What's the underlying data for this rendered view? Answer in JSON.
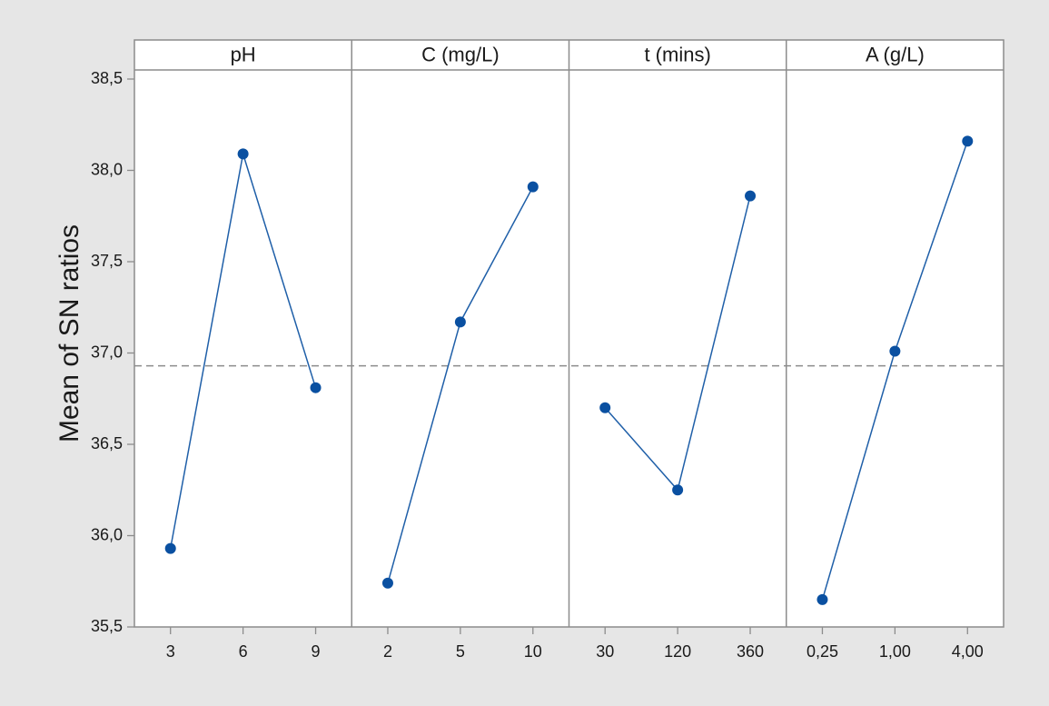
{
  "chart_data": {
    "type": "line",
    "chart_kind": "main effects plot (faceted)",
    "title": "",
    "ylabel": "Mean of SN ratios",
    "ylim": [
      35.5,
      38.5
    ],
    "yticks": [
      "35,5",
      "36,0",
      "36,5",
      "37,0",
      "37,5",
      "38,0",
      "38,5"
    ],
    "reference_line": {
      "value": 36.93,
      "style": "dashed"
    },
    "grid": false,
    "colors": {
      "series": "#1f5fa8",
      "marker": "#0a50a1",
      "reference": "#8c8c8c",
      "panel_bg": "#ffffff",
      "outer_bg": "#e6e6e6",
      "border": "#8c8c8c"
    },
    "panels": [
      {
        "name": "pH",
        "categories": [
          "3",
          "6",
          "9"
        ],
        "values": [
          35.93,
          38.09,
          36.81
        ]
      },
      {
        "name": "C (mg/L)",
        "categories": [
          "2",
          "5",
          "10"
        ],
        "values": [
          35.74,
          37.17,
          37.91
        ]
      },
      {
        "name": "t (mins)",
        "categories": [
          "30",
          "120",
          "360"
        ],
        "values": [
          36.7,
          36.25,
          37.86
        ]
      },
      {
        "name": "A (g/L)",
        "categories": [
          "0,25",
          "1,00",
          "4,00"
        ],
        "values": [
          35.65,
          37.01,
          38.16
        ]
      }
    ]
  }
}
